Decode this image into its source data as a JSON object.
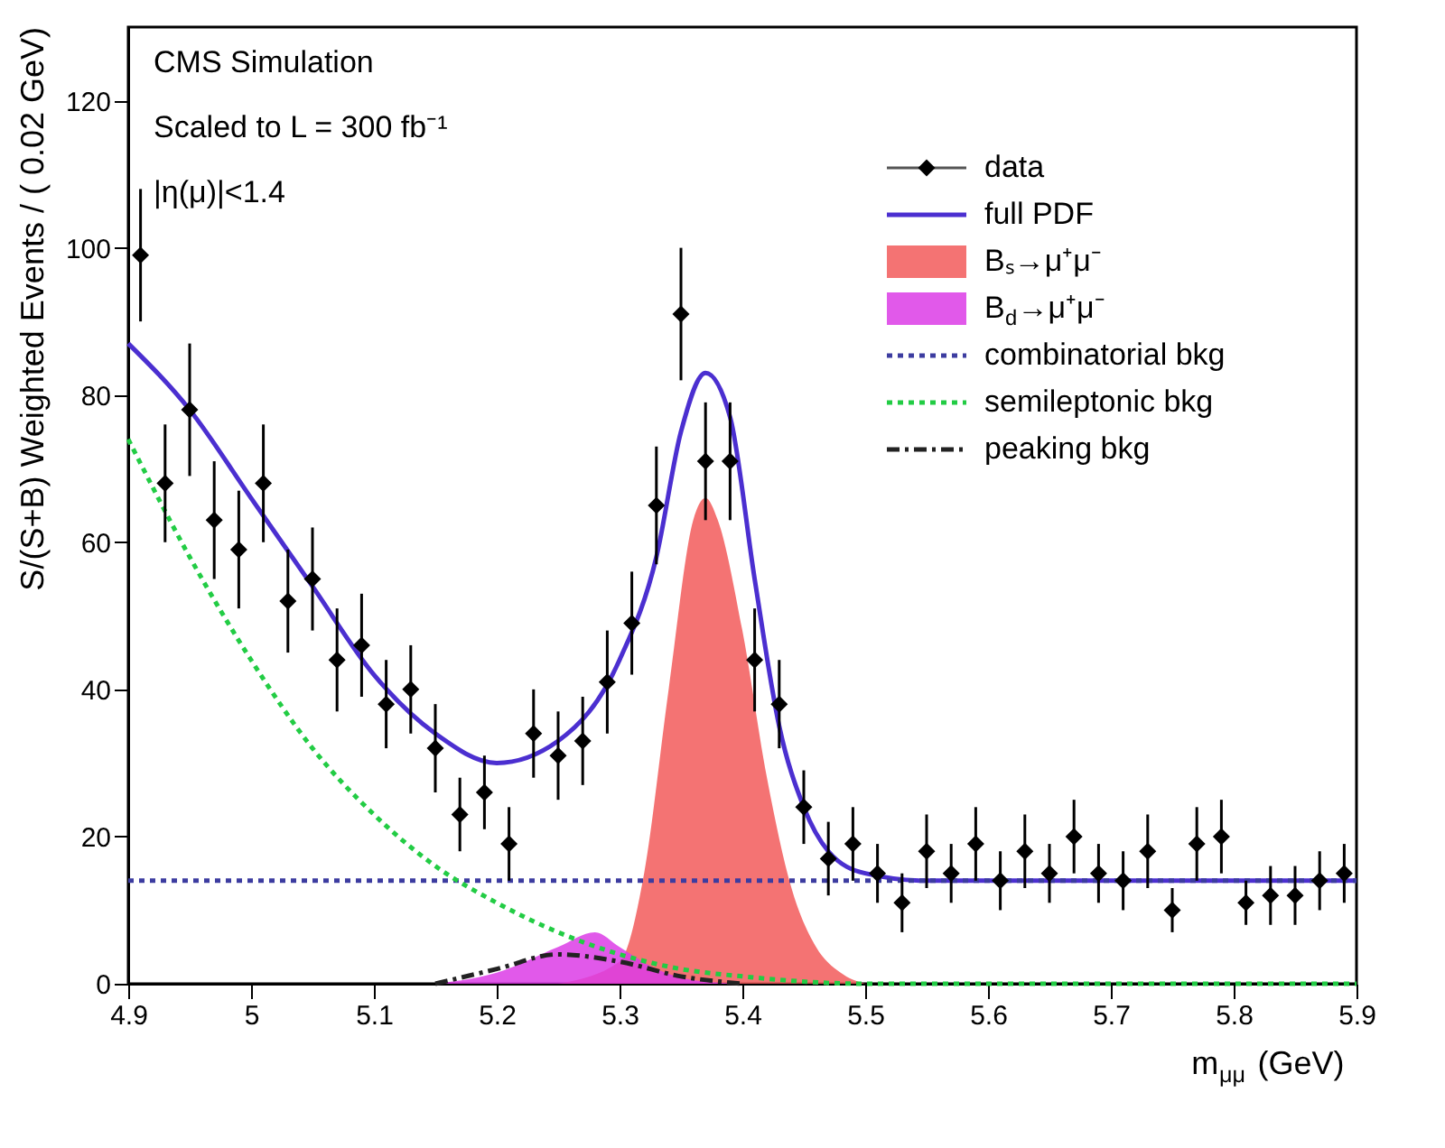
{
  "chart_data": {
    "type": "scatter",
    "xlabel": "m$_{μμ}$ (GeV)",
    "ylabel": "S/(S+B) Weighted Events / ( 0.02 GeV)",
    "annotations": [
      "CMS Simulation",
      "Scaled to L = 300 fb⁻¹",
      "|η(μ)|<1.4"
    ],
    "xlim": [
      4.9,
      5.9
    ],
    "xticks": [
      4.9,
      5,
      5.1,
      5.2,
      5.3,
      5.4,
      5.5,
      5.6,
      5.7,
      5.8,
      5.9
    ],
    "ylim": [
      0,
      130
    ],
    "yticks": [
      0,
      20,
      40,
      60,
      80,
      100,
      120
    ],
    "grid": false,
    "legend": "top right",
    "series": [
      {
        "name": "data",
        "type": "scatter",
        "marker": "diamond",
        "color": "#000000",
        "x": [
          4.91,
          4.93,
          4.95,
          4.97,
          4.99,
          5.01,
          5.03,
          5.05,
          5.07,
          5.09,
          5.11,
          5.13,
          5.15,
          5.17,
          5.19,
          5.21,
          5.23,
          5.25,
          5.27,
          5.29,
          5.31,
          5.33,
          5.35,
          5.37,
          5.39,
          5.41,
          5.43,
          5.45,
          5.47,
          5.49,
          5.51,
          5.53,
          5.55,
          5.57,
          5.59,
          5.61,
          5.63,
          5.65,
          5.67,
          5.69,
          5.71,
          5.73,
          5.75,
          5.77,
          5.79,
          5.81,
          5.83,
          5.85,
          5.87,
          5.89
        ],
        "values": [
          99,
          68,
          78,
          63,
          59,
          68,
          52,
          55,
          44,
          46,
          38,
          40,
          32,
          23,
          26,
          19,
          34,
          31,
          33,
          41,
          49,
          65,
          91,
          71,
          71,
          44,
          38,
          24,
          17,
          19,
          15,
          11,
          18,
          15,
          19,
          14,
          18,
          15,
          20,
          15,
          14,
          18,
          10,
          19,
          20,
          11,
          12,
          12,
          14,
          15
        ],
        "errors": [
          9,
          8,
          9,
          8,
          8,
          8,
          7,
          7,
          7,
          7,
          6,
          6,
          6,
          5,
          5,
          5,
          6,
          6,
          6,
          7,
          7,
          8,
          9,
          8,
          8,
          7,
          6,
          5,
          5,
          5,
          4,
          4,
          5,
          4,
          5,
          4,
          5,
          4,
          5,
          4,
          4,
          5,
          3,
          5,
          5,
          3,
          4,
          4,
          4,
          4
        ]
      },
      {
        "name": "full PDF",
        "type": "line",
        "line_style": "solid",
        "color": "#4b2fd0",
        "x": [
          4.9,
          4.95,
          5.0,
          5.05,
          5.1,
          5.15,
          5.2,
          5.25,
          5.3,
          5.33,
          5.35,
          5.37,
          5.39,
          5.41,
          5.43,
          5.45,
          5.47,
          5.5,
          5.55,
          5.9
        ],
        "values": [
          87,
          78,
          66,
          54,
          42,
          34,
          30,
          33,
          44,
          58,
          75,
          83,
          77,
          55,
          35,
          24,
          18,
          15,
          14,
          14
        ]
      },
      {
        "name": "Bₛ→μ⁺μ⁻",
        "type": "area",
        "color": "#f25a5a",
        "x": [
          5.25,
          5.3,
          5.32,
          5.34,
          5.36,
          5.37,
          5.38,
          5.4,
          5.42,
          5.44,
          5.46,
          5.48,
          5.5
        ],
        "values": [
          0,
          3,
          15,
          40,
          63,
          66,
          63,
          48,
          28,
          13,
          5,
          1.5,
          0
        ]
      },
      {
        "name": "B$_{d}$→μ⁺μ⁻",
        "type": "area",
        "color": "#dc3ce6",
        "x": [
          5.15,
          5.2,
          5.25,
          5.28,
          5.3,
          5.33,
          5.36,
          5.4
        ],
        "values": [
          0,
          1.5,
          5,
          7,
          5,
          2,
          0.5,
          0
        ]
      },
      {
        "name": "combinatorial bkg",
        "type": "line",
        "line_style": "dotted",
        "color": "#3c3ca0",
        "x": [
          4.9,
          5.9
        ],
        "values": [
          14,
          14
        ]
      },
      {
        "name": "semileptonic bkg",
        "type": "line",
        "line_style": "dotted",
        "color": "#22cc44",
        "x": [
          4.9,
          4.95,
          5.0,
          5.05,
          5.1,
          5.15,
          5.2,
          5.25,
          5.3,
          5.35,
          5.4,
          5.5,
          5.9
        ],
        "values": [
          74,
          58,
          44,
          32,
          23,
          16,
          11,
          7,
          4,
          2,
          1,
          0,
          0
        ]
      },
      {
        "name": "peaking bkg",
        "type": "line",
        "line_style": "dashed",
        "color": "#222222",
        "x": [
          5.15,
          5.2,
          5.25,
          5.3,
          5.35,
          5.4
        ],
        "values": [
          0,
          2,
          4,
          3,
          1,
          0
        ]
      }
    ]
  }
}
